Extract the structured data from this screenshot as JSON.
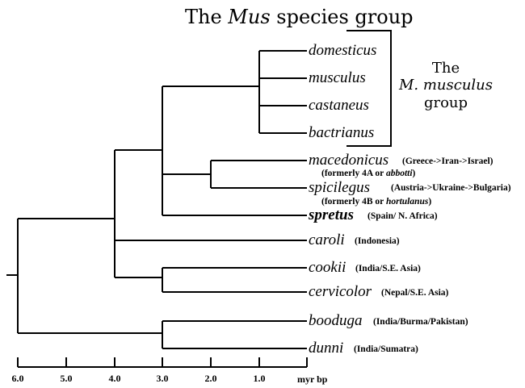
{
  "title": {
    "prefix": "The ",
    "genus": "Mus",
    "suffix": " species group"
  },
  "subgroup": {
    "line1": "The",
    "line2": "M. musculus",
    "line3": "group"
  },
  "taxa": [
    {
      "name": "domesticus"
    },
    {
      "name": "musculus"
    },
    {
      "name": "castaneus"
    },
    {
      "name": "bactrianus"
    },
    {
      "name": "macedonicus",
      "region": "(Greece->Iran->Israel)",
      "note_prefix": "(formerly 4A or ",
      "note_italic": "abbotti",
      "note_suffix": ")"
    },
    {
      "name": "spicilegus",
      "region": "(Austria->Ukraine->Bulgaria)",
      "note_prefix": "(formerly 4B or ",
      "note_italic": "hortulanus",
      "note_suffix": ")"
    },
    {
      "name": "spretus",
      "region": "(Spain/ N. Africa)"
    },
    {
      "name": "caroli",
      "region": "(Indonesia)"
    },
    {
      "name": "cookii",
      "region": "(India/S.E. Asia)"
    },
    {
      "name": "cervicolor",
      "region": "(Nepal/S.E. Asia)"
    },
    {
      "name": "booduga",
      "region": "(India/Burma/Pakistan)"
    },
    {
      "name": "dunni",
      "region": "(India/Sumatra)"
    }
  ],
  "axis": {
    "ticks": [
      "6.0",
      "5.0",
      "4.0",
      "3.0",
      "2.0",
      "1.0"
    ],
    "unit": "myr bp"
  }
}
